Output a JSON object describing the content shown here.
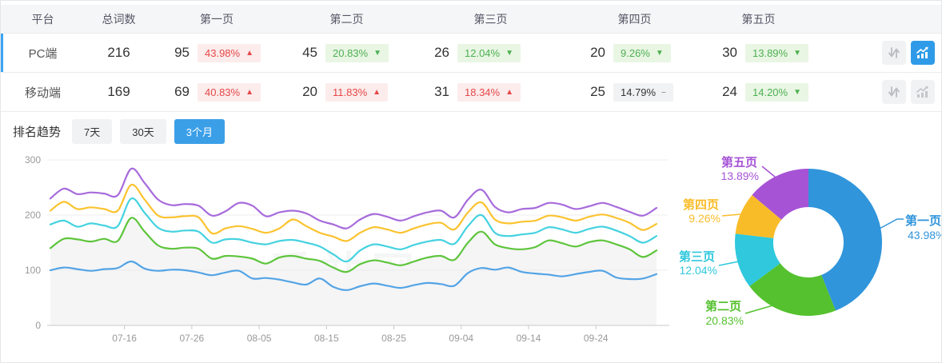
{
  "table": {
    "headers": {
      "platform": "平台",
      "total": "总词数",
      "pages": [
        "第一页",
        "第二页",
        "第三页",
        "第四页",
        "第五页"
      ]
    },
    "rows": [
      {
        "platform": "PC端",
        "total": "216",
        "selected": true,
        "trend_chart_active": true,
        "pages": [
          {
            "count": "95",
            "pct": "43.98%",
            "dir": "up",
            "tone": "red"
          },
          {
            "count": "45",
            "pct": "20.83%",
            "dir": "down",
            "tone": "green"
          },
          {
            "count": "26",
            "pct": "12.04%",
            "dir": "down",
            "tone": "green"
          },
          {
            "count": "20",
            "pct": "9.26%",
            "dir": "down",
            "tone": "green"
          },
          {
            "count": "30",
            "pct": "13.89%",
            "dir": "down",
            "tone": "green"
          }
        ]
      },
      {
        "platform": "移动端",
        "total": "169",
        "selected": false,
        "trend_chart_active": false,
        "pages": [
          {
            "count": "69",
            "pct": "40.83%",
            "dir": "up",
            "tone": "red"
          },
          {
            "count": "20",
            "pct": "11.83%",
            "dir": "up",
            "tone": "red"
          },
          {
            "count": "31",
            "pct": "18.34%",
            "dir": "up",
            "tone": "red"
          },
          {
            "count": "25",
            "pct": "14.79%",
            "dir": "flat",
            "tone": "gray"
          },
          {
            "count": "24",
            "pct": "14.20%",
            "dir": "down",
            "tone": "green"
          }
        ]
      }
    ],
    "icons": {
      "sort": "up-down-arrows-icon",
      "trend": "line-chart-icon"
    }
  },
  "trend": {
    "title": "排名趋势",
    "ranges": [
      {
        "label": "7天",
        "active": false
      },
      {
        "label": "30天",
        "active": false
      },
      {
        "label": "3个月",
        "active": true
      }
    ]
  },
  "colors": {
    "accent_blue": "#3b9fe8",
    "badge_red_text": "#e64747",
    "badge_red_bg": "#fcecec",
    "badge_green_text": "#4db052",
    "badge_green_bg": "#e9f6e4",
    "badge_gray_bg": "#f1f2f3",
    "selected_row_bar": "#3ba4f3"
  },
  "chart_data": [
    {
      "type": "line",
      "title": "排名趋势 (3个月)",
      "watermark": "爱站网",
      "grid": true,
      "legend_position": "none",
      "ylim": [
        0,
        300
      ],
      "yticks": [
        0,
        100,
        200,
        300
      ],
      "x_ticks": [
        "07-16",
        "07-26",
        "08-05",
        "08-15",
        "08-25",
        "09-04",
        "09-14",
        "09-24"
      ],
      "x_tick_indices": [
        5.5,
        10.5,
        15.5,
        20.5,
        25.5,
        30.5,
        35.5,
        40.5
      ],
      "x_dates": [
        "07-05",
        "07-07",
        "07-09",
        "07-11",
        "07-13",
        "07-15",
        "07-17",
        "07-19",
        "07-21",
        "07-23",
        "07-25",
        "07-27",
        "07-29",
        "07-31",
        "08-02",
        "08-04",
        "08-06",
        "08-08",
        "08-10",
        "08-12",
        "08-14",
        "08-16",
        "08-18",
        "08-20",
        "08-22",
        "08-24",
        "08-26",
        "08-28",
        "08-30",
        "09-01",
        "09-03",
        "09-05",
        "09-07",
        "09-09",
        "09-11",
        "09-13",
        "09-15",
        "09-17",
        "09-19",
        "09-21",
        "09-23",
        "09-25",
        "09-27",
        "09-29",
        "10-01",
        "10-03"
      ],
      "series": [
        {
          "name": "第一页",
          "color": "#54a4e5",
          "values": [
            100,
            105,
            102,
            99,
            102,
            104,
            116,
            103,
            99,
            101,
            100,
            96,
            91,
            96,
            99,
            85,
            86,
            83,
            78,
            74,
            85,
            70,
            64,
            71,
            76,
            72,
            68,
            73,
            77,
            75,
            72,
            95,
            104,
            101,
            105,
            97,
            94,
            92,
            89,
            93,
            97,
            99,
            87,
            84,
            85,
            93
          ]
        },
        {
          "name": "第二页",
          "color": "#5ec53c",
          "area_fill": "#f5f5f6",
          "values": [
            140,
            157,
            156,
            152,
            157,
            153,
            195,
            170,
            145,
            139,
            141,
            139,
            121,
            126,
            125,
            121,
            112,
            123,
            126,
            121,
            117,
            105,
            97,
            111,
            118,
            114,
            109,
            116,
            123,
            126,
            119,
            150,
            170,
            147,
            140,
            138,
            142,
            154,
            149,
            143,
            151,
            154,
            147,
            138,
            124,
            136
          ]
        },
        {
          "name": "第三页",
          "color": "#45d2e0",
          "values": [
            183,
            190,
            179,
            185,
            181,
            180,
            230,
            204,
            177,
            170,
            172,
            170,
            150,
            156,
            156,
            150,
            147,
            153,
            155,
            150,
            143,
            129,
            116,
            136,
            147,
            143,
            138,
            146,
            152,
            155,
            148,
            180,
            200,
            168,
            162,
            165,
            168,
            178,
            174,
            168,
            175,
            179,
            172,
            162,
            150,
            162
          ]
        },
        {
          "name": "第四页",
          "color": "#fbc32f",
          "values": [
            208,
            224,
            211,
            214,
            211,
            208,
            255,
            228,
            199,
            196,
            198,
            196,
            167,
            176,
            180,
            175,
            168,
            176,
            192,
            180,
            168,
            161,
            153,
            168,
            178,
            174,
            168,
            176,
            183,
            186,
            174,
            205,
            223,
            192,
            185,
            188,
            190,
            199,
            196,
            190,
            197,
            201,
            195,
            186,
            173,
            184
          ]
        },
        {
          "name": "第五页",
          "color": "#a76bdc",
          "values": [
            230,
            248,
            238,
            241,
            239,
            236,
            284,
            258,
            228,
            218,
            220,
            217,
            199,
            207,
            222,
            217,
            198,
            205,
            208,
            203,
            190,
            183,
            176,
            192,
            202,
            197,
            190,
            198,
            205,
            208,
            196,
            228,
            246,
            215,
            205,
            211,
            213,
            222,
            219,
            211,
            216,
            222,
            215,
            206,
            199,
            213
          ]
        }
      ]
    },
    {
      "type": "pie",
      "donut": true,
      "slices": [
        {
          "label": "第一页",
          "value": 43.98,
          "display": "43.98%",
          "color": "#3095db"
        },
        {
          "label": "第二页",
          "value": 20.83,
          "display": "20.83%",
          "color": "#55c12f"
        },
        {
          "label": "第三页",
          "value": 12.04,
          "display": "12.04%",
          "color": "#2fc8dd"
        },
        {
          "label": "第四页",
          "value": 9.26,
          "display": "9.26%",
          "color": "#f9bc29"
        },
        {
          "label": "第五页",
          "value": 13.89,
          "display": "13.89%",
          "color": "#a653d6"
        }
      ]
    }
  ]
}
